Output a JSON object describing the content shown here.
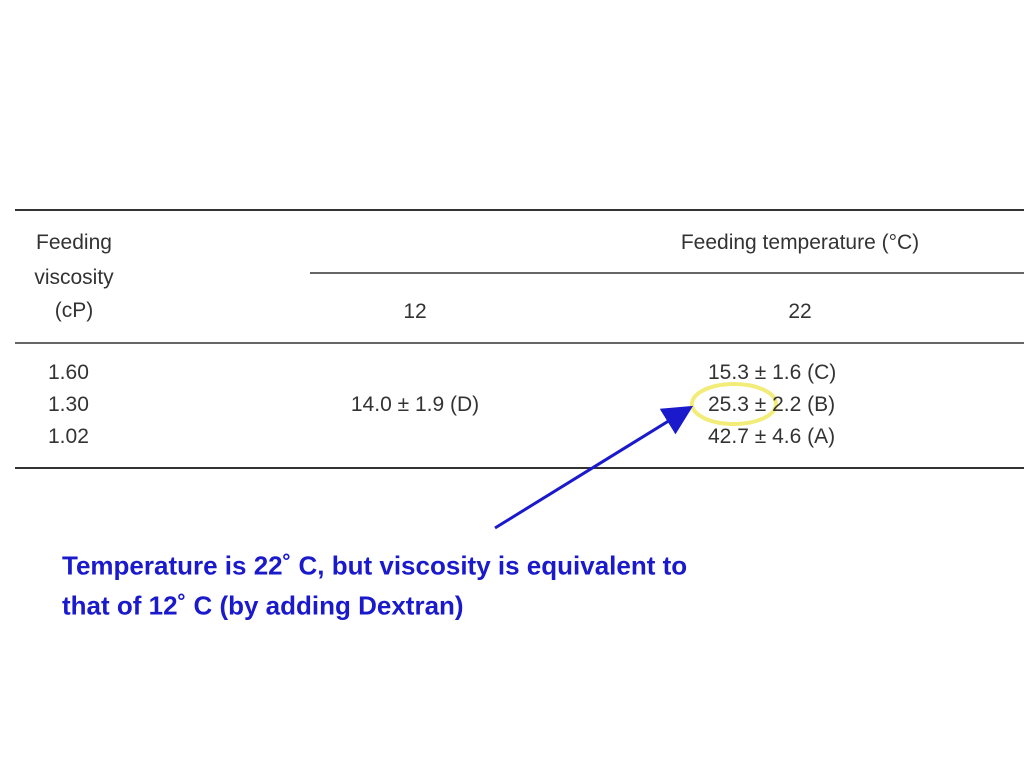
{
  "table": {
    "row_header": [
      "Feeding",
      "viscosity",
      "(cP)"
    ],
    "group_header": "Feeding temperature (°C)",
    "columns": [
      "12",
      "22"
    ],
    "viscosities": [
      "1.60",
      "1.30",
      "1.02"
    ],
    "col_12_value": "14.0 ± 1.9 (D)",
    "col_22_values": [
      "15.3 ± 1.6 (C)",
      "25.3 ± 2.2 (B)",
      "42.7 ± 4.6 (A)"
    ]
  },
  "annotation": {
    "lines": [
      "Temperature is 22˚ C, but viscosity is equivalent to",
      "that of 12˚ C (by adding Dextran)"
    ]
  }
}
